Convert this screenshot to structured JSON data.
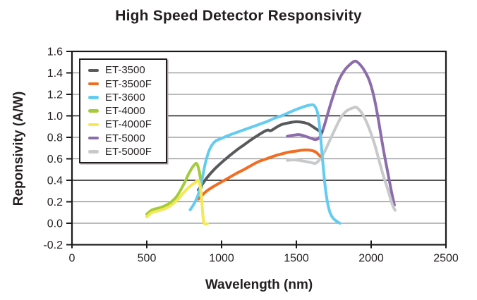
{
  "title": "High Speed Detector Responsivity",
  "chart_data": {
    "type": "line",
    "title": "High Speed Detector Responsivity",
    "xlabel": "Wavelength (nm)",
    "ylabel": "Reponsivity (A/W)",
    "xlim": [
      0,
      2500
    ],
    "ylim": [
      -0.2,
      1.6
    ],
    "x_tick_labels": [
      "0",
      "500",
      "1000",
      "1500",
      "2000",
      "2500"
    ],
    "y_tick_labels": [
      "-0.2",
      "0.0",
      "0.2",
      "0.4",
      "0.6",
      "0.8",
      "1.0",
      "1.2",
      "1.4",
      "1.6"
    ],
    "grid": "horizontal",
    "dark_gridline_values": [
      1.6,
      1.0,
      0.4,
      -0.2
    ],
    "legend_position": "top-left-inside",
    "axis_color": "#1a1a1a",
    "minor_grid_color": "#8f9093",
    "draw_order": [
      "ET-4000",
      "ET-5000",
      "ET-5000F",
      "ET-3500",
      "ET-3500F",
      "ET-3600",
      "ET-4000F"
    ],
    "series": [
      {
        "name": "ET-3500",
        "color": "#58595b",
        "points": [
          [
            845,
            0.31
          ],
          [
            870,
            0.36
          ],
          [
            900,
            0.42
          ],
          [
            950,
            0.5
          ],
          [
            1000,
            0.565
          ],
          [
            1050,
            0.625
          ],
          [
            1100,
            0.68
          ],
          [
            1150,
            0.73
          ],
          [
            1200,
            0.78
          ],
          [
            1250,
            0.825
          ],
          [
            1290,
            0.858
          ],
          [
            1310,
            0.868
          ],
          [
            1330,
            0.862
          ],
          [
            1360,
            0.888
          ],
          [
            1400,
            0.918
          ],
          [
            1450,
            0.935
          ],
          [
            1500,
            0.945
          ],
          [
            1540,
            0.94
          ],
          [
            1580,
            0.925
          ],
          [
            1620,
            0.89
          ],
          [
            1650,
            0.862
          ],
          [
            1672,
            0.85
          ]
        ]
      },
      {
        "name": "ET-3500F",
        "color": "#f26c21",
        "points": [
          [
            845,
            0.225
          ],
          [
            870,
            0.26
          ],
          [
            900,
            0.3
          ],
          [
            950,
            0.345
          ],
          [
            1000,
            0.385
          ],
          [
            1050,
            0.425
          ],
          [
            1100,
            0.465
          ],
          [
            1150,
            0.5
          ],
          [
            1200,
            0.54
          ],
          [
            1250,
            0.575
          ],
          [
            1300,
            0.6
          ],
          [
            1350,
            0.625
          ],
          [
            1400,
            0.645
          ],
          [
            1450,
            0.662
          ],
          [
            1500,
            0.672
          ],
          [
            1550,
            0.682
          ],
          [
            1600,
            0.678
          ],
          [
            1630,
            0.663
          ],
          [
            1660,
            0.622
          ]
        ]
      },
      {
        "name": "ET-3600",
        "color": "#64cbf1",
        "points": [
          [
            790,
            0.125
          ],
          [
            820,
            0.19
          ],
          [
            850,
            0.29
          ],
          [
            870,
            0.41
          ],
          [
            890,
            0.55
          ],
          [
            910,
            0.65
          ],
          [
            930,
            0.715
          ],
          [
            960,
            0.765
          ],
          [
            1000,
            0.79
          ],
          [
            1050,
            0.82
          ],
          [
            1100,
            0.845
          ],
          [
            1150,
            0.87
          ],
          [
            1200,
            0.895
          ],
          [
            1250,
            0.92
          ],
          [
            1300,
            0.945
          ],
          [
            1350,
            0.975
          ],
          [
            1400,
            1.0
          ],
          [
            1450,
            1.03
          ],
          [
            1500,
            1.06
          ],
          [
            1550,
            1.085
          ],
          [
            1590,
            1.1
          ],
          [
            1620,
            1.095
          ],
          [
            1645,
            1.01
          ],
          [
            1662,
            0.8
          ],
          [
            1678,
            0.55
          ],
          [
            1692,
            0.35
          ],
          [
            1706,
            0.21
          ],
          [
            1725,
            0.1
          ],
          [
            1750,
            0.04
          ],
          [
            1790,
            0.0
          ]
        ]
      },
      {
        "name": "ET-4000",
        "color": "#a3cb3a",
        "points": [
          [
            500,
            0.085
          ],
          [
            530,
            0.12
          ],
          [
            560,
            0.135
          ],
          [
            600,
            0.15
          ],
          [
            650,
            0.185
          ],
          [
            700,
            0.25
          ],
          [
            750,
            0.37
          ],
          [
            780,
            0.46
          ],
          [
            810,
            0.53
          ],
          [
            833,
            0.556
          ],
          [
            848,
            0.5
          ],
          [
            858,
            0.42
          ],
          [
            866,
            0.335
          ]
        ]
      },
      {
        "name": "ET-4000F",
        "color": "#f4e854",
        "points": [
          [
            500,
            0.06
          ],
          [
            530,
            0.095
          ],
          [
            560,
            0.11
          ],
          [
            600,
            0.125
          ],
          [
            650,
            0.155
          ],
          [
            700,
            0.21
          ],
          [
            750,
            0.29
          ],
          [
            790,
            0.345
          ],
          [
            820,
            0.375
          ],
          [
            843,
            0.4
          ],
          [
            856,
            0.35
          ],
          [
            867,
            0.22
          ],
          [
            874,
            0.09
          ],
          [
            881,
            0.01
          ],
          [
            893,
            -0.008
          ],
          [
            905,
            -0.003
          ]
        ]
      },
      {
        "name": "ET-5000",
        "color": "#8d6cab",
        "points": [
          [
            1440,
            0.81
          ],
          [
            1480,
            0.82
          ],
          [
            1520,
            0.825
          ],
          [
            1560,
            0.81
          ],
          [
            1600,
            0.79
          ],
          [
            1628,
            0.779
          ],
          [
            1655,
            0.8
          ],
          [
            1680,
            0.88
          ],
          [
            1710,
            1.02
          ],
          [
            1740,
            1.16
          ],
          [
            1780,
            1.32
          ],
          [
            1820,
            1.42
          ],
          [
            1860,
            1.48
          ],
          [
            1895,
            1.51
          ],
          [
            1930,
            1.47
          ],
          [
            1960,
            1.41
          ],
          [
            1990,
            1.32
          ],
          [
            2020,
            1.17
          ],
          [
            2050,
            0.95
          ],
          [
            2080,
            0.7
          ],
          [
            2110,
            0.48
          ],
          [
            2135,
            0.3
          ],
          [
            2155,
            0.17
          ]
        ]
      },
      {
        "name": "ET-5000F",
        "color": "#c8c9cb",
        "points": [
          [
            1440,
            0.585
          ],
          [
            1480,
            0.59
          ],
          [
            1520,
            0.585
          ],
          [
            1560,
            0.575
          ],
          [
            1600,
            0.565
          ],
          [
            1628,
            0.558
          ],
          [
            1660,
            0.6
          ],
          [
            1690,
            0.67
          ],
          [
            1720,
            0.76
          ],
          [
            1760,
            0.88
          ],
          [
            1800,
            0.99
          ],
          [
            1840,
            1.05
          ],
          [
            1880,
            1.075
          ],
          [
            1900,
            1.08
          ],
          [
            1930,
            1.04
          ],
          [
            1960,
            0.97
          ],
          [
            1990,
            0.87
          ],
          [
            2020,
            0.75
          ],
          [
            2050,
            0.6
          ],
          [
            2080,
            0.45
          ],
          [
            2110,
            0.32
          ],
          [
            2140,
            0.18
          ],
          [
            2160,
            0.12
          ]
        ]
      }
    ]
  }
}
